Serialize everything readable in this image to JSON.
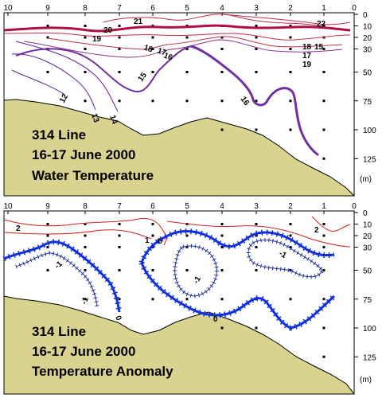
{
  "chart_data": [
    {
      "type": "contour",
      "title_lines": [
        "314 Line",
        "16-17 June 2000",
        "Water Temperature"
      ],
      "stations": [
        "10",
        "9",
        "8",
        "7",
        "6",
        "5",
        "4",
        "3",
        "2",
        "1",
        "0"
      ],
      "depth_ticks": [
        "0",
        "10",
        "20",
        "30",
        "50",
        "75",
        "100",
        "125"
      ],
      "depth_unit": "(m)",
      "contour_labels": [
        "22",
        "21",
        "20",
        "19",
        "18",
        "17",
        "16",
        "15",
        "14",
        "13",
        "12",
        "16",
        "17",
        "18",
        "19",
        "15"
      ],
      "colors": {
        "seafloor": "#d8d490",
        "warm": "#c00030",
        "cool": "#7030a0",
        "deep": "#6020a0"
      }
    },
    {
      "type": "contour",
      "title_lines": [
        "314 Line",
        "16-17 June 2000",
        "Temperature Anomaly"
      ],
      "stations": [
        "10",
        "9",
        "8",
        "7",
        "6",
        "5",
        "4",
        "3",
        "2",
        "1",
        "0"
      ],
      "depth_ticks": [
        "0",
        "10",
        "20",
        "30",
        "50",
        "75",
        "100",
        "125"
      ],
      "depth_unit": "(m)",
      "contour_labels": [
        "2",
        "1",
        "0",
        "-1",
        "0",
        "-1",
        "-1",
        "0",
        "-1",
        "2"
      ],
      "colors": {
        "seafloor": "#d8d490",
        "positive": "#d02020",
        "zero": "#1030e0",
        "negative": "#2030a0"
      }
    }
  ]
}
